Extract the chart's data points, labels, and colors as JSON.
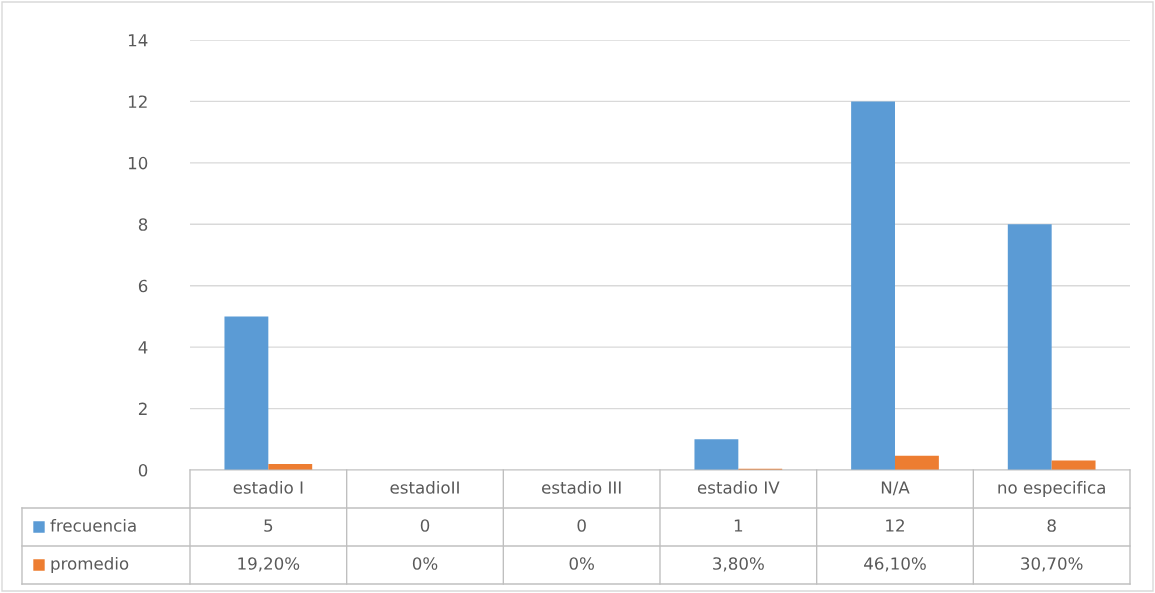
{
  "chart_data": {
    "type": "bar",
    "categories": [
      "estadio I",
      "estadioII",
      "estadio III",
      "estadio IV",
      "N/A",
      "no especifica"
    ],
    "series": [
      {
        "name": "frecuencia",
        "color": "#5b9bd5",
        "values": [
          5,
          0,
          0,
          1,
          12,
          8
        ],
        "value_labels": [
          "5",
          "0",
          "0",
          "1",
          "12",
          "8"
        ]
      },
      {
        "name": "promedio",
        "color": "#ed7d31",
        "values": [
          0.192,
          0,
          0,
          0.038,
          0.461,
          0.307
        ],
        "value_labels": [
          "19,20%",
          "0%",
          "0%",
          "3,80%",
          "46,10%",
          "30,70%"
        ]
      }
    ],
    "ylim": [
      0,
      14
    ],
    "yticks": [
      0,
      2,
      4,
      6,
      8,
      10,
      12,
      14
    ],
    "grid": "y",
    "legend": "bottom"
  }
}
